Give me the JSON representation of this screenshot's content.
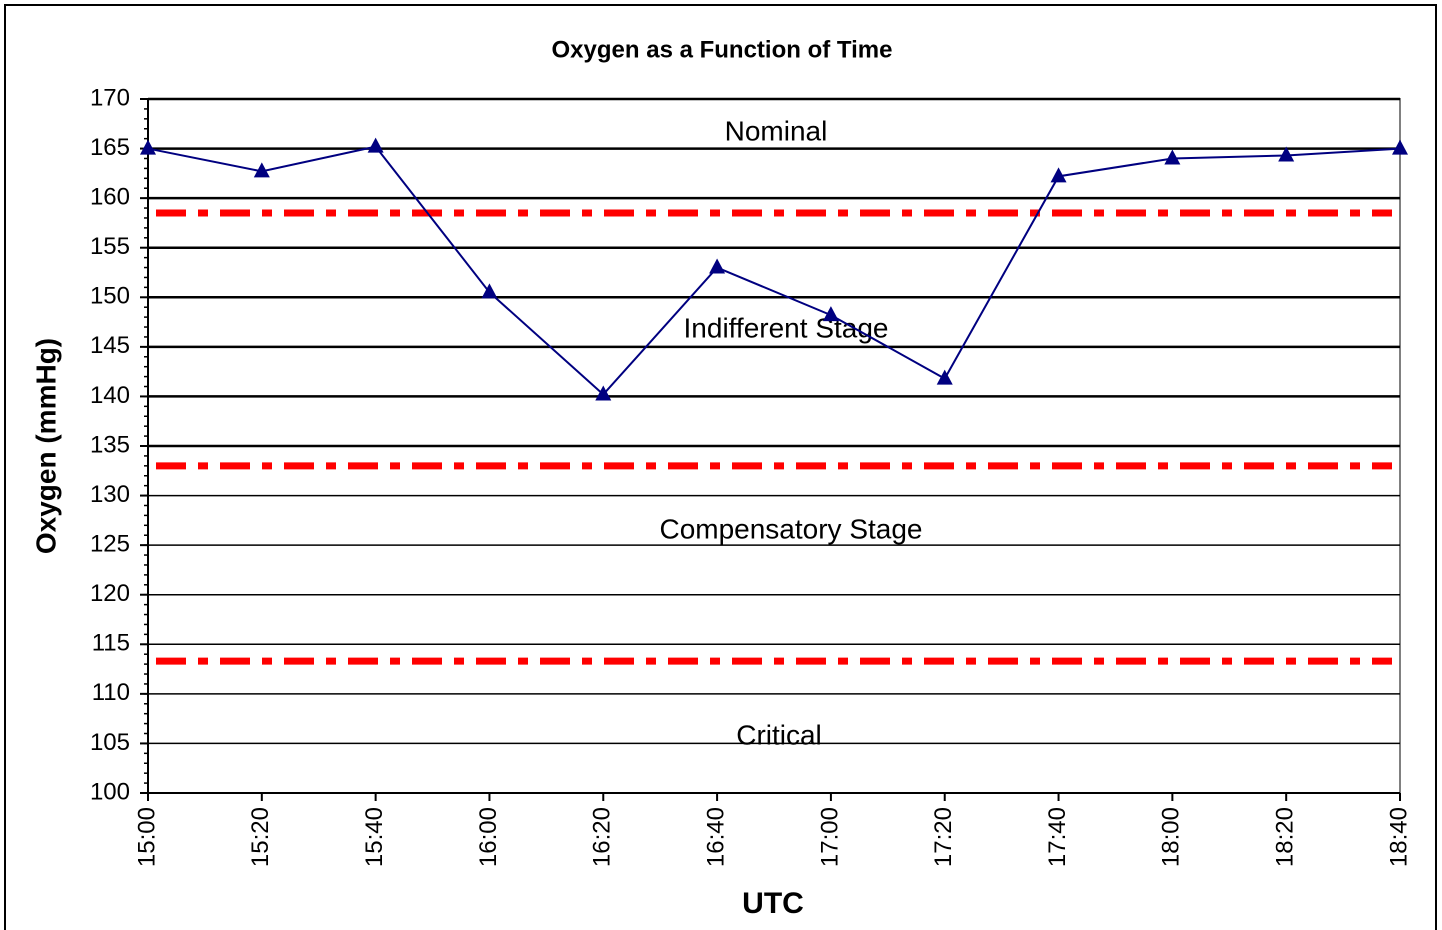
{
  "chart_data": {
    "type": "line",
    "title": "Oxygen as a Function of Time",
    "x_label": "UTC",
    "y_label": "Oxygen (mmHg)",
    "categories": [
      "15:00",
      "15:20",
      "15:40",
      "16:00",
      "16:20",
      "16:40",
      "17:00",
      "17:20",
      "17:40",
      "18:00",
      "18:20",
      "18:40"
    ],
    "series": [
      {
        "name": "Oxygen",
        "color": "#000080",
        "values": [
          165,
          162.7,
          165.2,
          150.5,
          140.2,
          153,
          148.2,
          141.8,
          162.2,
          164,
          164.3,
          165
        ]
      }
    ],
    "ylim": [
      100,
      170
    ],
    "yticks": [
      100,
      105,
      110,
      115,
      120,
      125,
      130,
      135,
      140,
      145,
      150,
      155,
      160,
      165,
      170
    ],
    "grid": true,
    "reference_lines": [
      {
        "value": 158.5,
        "color": "#ff0000"
      },
      {
        "value": 133,
        "color": "#ff0000"
      },
      {
        "value": 113.3,
        "color": "#ff0000"
      }
    ],
    "annotations": [
      "Nominal",
      "Indifferent Stage",
      "Compensatory Stage",
      "Critical"
    ]
  }
}
